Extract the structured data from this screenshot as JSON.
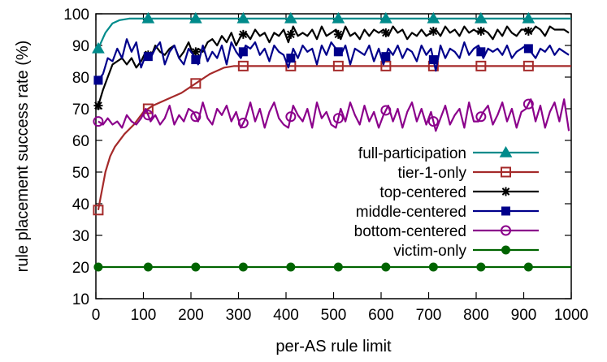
{
  "chart_data": {
    "type": "line",
    "xlabel": "per-AS rule limit",
    "ylabel": "rule placement success rate (%)",
    "xlim": [
      0,
      1000
    ],
    "ylim": [
      10,
      100
    ],
    "xticks": [
      0,
      100,
      200,
      300,
      400,
      500,
      600,
      700,
      800,
      900,
      1000
    ],
    "yticks": [
      10,
      20,
      30,
      40,
      50,
      60,
      70,
      80,
      90,
      100
    ],
    "grid": false,
    "legend_position": "inside-right",
    "series": [
      {
        "name": "full-participation",
        "color": "#008b8b",
        "marker": "triangle",
        "x": [
          5,
          20,
          35,
          50,
          70,
          100,
          150,
          200,
          300,
          400,
          500,
          600,
          700,
          800,
          900,
          1000
        ],
        "y": [
          89,
          94,
          97,
          98,
          98.5,
          98.5,
          98.5,
          98.5,
          98.5,
          98.5,
          98.5,
          98.5,
          98.5,
          98.5,
          98.5,
          98.5
        ],
        "marker_x": [
          5,
          110,
          210,
          310,
          410,
          510,
          610,
          710,
          810,
          910
        ]
      },
      {
        "name": "tier-1-only",
        "color": "#a52a2a",
        "marker": "open-square",
        "x": [
          5,
          10,
          15,
          20,
          30,
          40,
          60,
          80,
          100,
          120,
          150,
          180,
          210,
          240,
          270,
          290,
          1000
        ],
        "y": [
          38,
          42,
          46,
          50,
          55,
          58,
          62,
          65,
          69,
          71,
          73,
          75,
          78,
          81,
          83,
          83.5,
          83.5
        ],
        "marker_x": [
          5,
          110,
          210,
          310,
          410,
          510,
          610,
          710,
          810,
          910
        ]
      },
      {
        "name": "top-centered",
        "color": "#000000",
        "marker": "star",
        "x": [
          5,
          15,
          25,
          35,
          45,
          55,
          65,
          75,
          85,
          95,
          105,
          115,
          125,
          135,
          145,
          155,
          165,
          175,
          185,
          195,
          205,
          215,
          225,
          235,
          245,
          255,
          265,
          275,
          285,
          295,
          305,
          315,
          325,
          335,
          345,
          355,
          365,
          375,
          385,
          395,
          405,
          415,
          425,
          435,
          445,
          455,
          465,
          475,
          485,
          495,
          505,
          515,
          525,
          535,
          545,
          555,
          565,
          575,
          585,
          595,
          605,
          615,
          625,
          635,
          645,
          655,
          665,
          675,
          685,
          695,
          705,
          715,
          725,
          735,
          745,
          755,
          765,
          775,
          785,
          795,
          805,
          815,
          825,
          835,
          845,
          855,
          865,
          875,
          885,
          895,
          905,
          915,
          925,
          935,
          945,
          955,
          965,
          975,
          985,
          995
        ],
        "y": [
          71,
          76,
          80,
          84,
          85,
          86,
          84,
          86,
          83,
          85,
          88,
          86,
          90,
          88,
          87,
          89,
          90,
          86,
          88,
          91,
          87,
          89,
          88,
          91,
          92,
          90,
          93,
          91,
          94,
          90,
          93,
          94,
          92,
          95,
          93,
          94,
          91,
          94,
          93,
          95,
          91,
          96,
          93,
          94,
          93,
          95,
          92,
          96,
          93,
          94,
          95,
          92,
          96,
          93,
          94,
          92,
          95,
          93,
          95,
          94,
          95,
          93,
          96,
          94,
          95,
          92,
          94,
          93,
          95,
          93,
          94,
          95,
          93,
          96,
          94,
          95,
          93,
          96,
          94,
          95,
          94,
          95,
          94,
          92,
          95,
          93,
          96,
          94,
          93,
          95,
          95,
          94,
          96,
          95,
          93,
          96,
          95,
          95,
          95,
          94
        ],
        "marker_x": [
          5,
          110,
          210,
          310,
          410,
          510,
          610,
          710,
          810,
          910
        ]
      },
      {
        "name": "middle-centered",
        "color": "#00008b",
        "marker": "filled-square",
        "x": [
          5,
          15,
          25,
          35,
          45,
          55,
          65,
          75,
          85,
          95,
          105,
          115,
          125,
          135,
          145,
          155,
          165,
          175,
          185,
          195,
          205,
          215,
          225,
          235,
          245,
          255,
          265,
          275,
          285,
          295,
          305,
          315,
          325,
          335,
          345,
          355,
          365,
          375,
          385,
          395,
          405,
          415,
          425,
          435,
          445,
          455,
          465,
          475,
          485,
          495,
          505,
          515,
          525,
          535,
          545,
          555,
          565,
          575,
          585,
          595,
          605,
          615,
          625,
          635,
          645,
          655,
          665,
          675,
          685,
          695,
          705,
          715,
          725,
          735,
          745,
          755,
          765,
          775,
          785,
          795,
          805,
          815,
          825,
          835,
          845,
          855,
          865,
          875,
          885,
          895,
          905,
          915,
          925,
          935,
          945,
          955,
          965,
          975,
          985,
          995
        ],
        "y": [
          79,
          81,
          86,
          85,
          89,
          86,
          92,
          88,
          91,
          83,
          87,
          86,
          89,
          91,
          84,
          88,
          90,
          86,
          84,
          89,
          87,
          84,
          90,
          85,
          88,
          86,
          90,
          84,
          91,
          88,
          86,
          90,
          89,
          91,
          87,
          89,
          85,
          90,
          88,
          87,
          83,
          89,
          86,
          90,
          88,
          89,
          84,
          90,
          87,
          91,
          89,
          87,
          90,
          84,
          89,
          88,
          87,
          90,
          85,
          89,
          84,
          89,
          87,
          90,
          86,
          89,
          88,
          85,
          90,
          87,
          89,
          82,
          90,
          86,
          89,
          88,
          86,
          91,
          87,
          89,
          90,
          86,
          89,
          88,
          89,
          87,
          90,
          86,
          88,
          89,
          90,
          88,
          86,
          89,
          88,
          90,
          87,
          89,
          88,
          87
        ],
        "marker_x": [
          5,
          110,
          210,
          310,
          410,
          510,
          610,
          710,
          810,
          910
        ]
      },
      {
        "name": "bottom-centered",
        "color": "#8b008b",
        "marker": "open-circle",
        "x": [
          5,
          15,
          25,
          35,
          45,
          55,
          65,
          75,
          85,
          95,
          105,
          115,
          125,
          135,
          145,
          155,
          165,
          175,
          185,
          195,
          205,
          215,
          225,
          235,
          245,
          255,
          265,
          275,
          285,
          295,
          305,
          315,
          325,
          335,
          345,
          355,
          365,
          375,
          385,
          395,
          405,
          415,
          425,
          435,
          445,
          455,
          465,
          475,
          485,
          495,
          505,
          515,
          525,
          535,
          545,
          555,
          565,
          575,
          585,
          595,
          605,
          615,
          625,
          635,
          645,
          655,
          665,
          675,
          685,
          695,
          705,
          715,
          725,
          735,
          745,
          755,
          765,
          775,
          785,
          795,
          805,
          815,
          825,
          835,
          845,
          855,
          865,
          875,
          885,
          895,
          905,
          915,
          925,
          935,
          945,
          955,
          965,
          975,
          985,
          995
        ],
        "y": [
          66,
          65,
          67,
          65,
          66,
          64,
          68,
          66,
          65,
          67,
          70,
          66,
          68,
          65,
          67,
          71,
          65,
          68,
          66,
          70,
          69,
          66,
          72,
          67,
          65,
          70,
          68,
          71,
          66,
          69,
          64,
          67,
          72,
          66,
          70,
          64,
          69,
          72,
          67,
          65,
          64,
          71,
          68,
          66,
          70,
          64,
          72,
          67,
          69,
          65,
          64,
          70,
          66,
          72,
          68,
          65,
          71,
          66,
          69,
          64,
          68,
          71,
          66,
          70,
          64,
          69,
          72,
          66,
          70,
          65,
          69,
          63,
          67,
          71,
          65,
          68,
          70,
          64,
          72,
          66,
          66,
          69,
          71,
          65,
          68,
          72,
          66,
          70,
          64,
          69,
          70,
          73,
          66,
          71,
          64,
          69,
          72,
          66,
          73,
          63
        ],
        "marker_x": [
          5,
          110,
          210,
          310,
          410,
          510,
          610,
          710,
          810,
          910
        ]
      },
      {
        "name": "victim-only",
        "color": "#006400",
        "marker": "filled-circle",
        "x": [
          5,
          1000
        ],
        "y": [
          20,
          20
        ],
        "marker_x": [
          5,
          110,
          210,
          310,
          410,
          510,
          610,
          710,
          810,
          910
        ]
      }
    ]
  }
}
